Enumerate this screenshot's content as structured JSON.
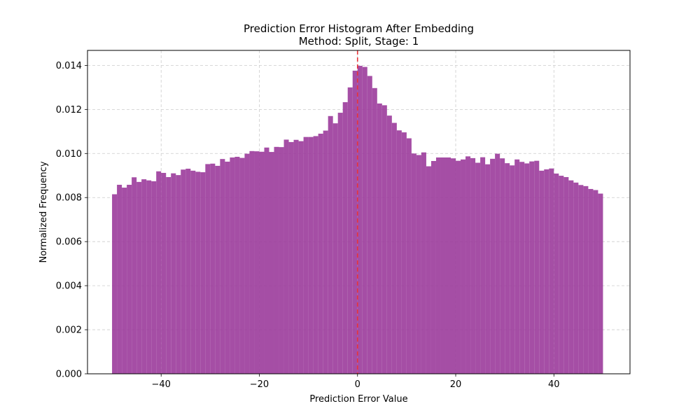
{
  "chart_data": {
    "type": "bar",
    "title": "Prediction Error Histogram After Embedding",
    "subtitle": "Method: Split, Stage: 1",
    "xlabel": "Prediction Error Value",
    "ylabel": "Normalized Frequency",
    "xlim": [
      -55,
      55.5
    ],
    "ylim": [
      0,
      0.01468
    ],
    "xticks": [
      -40,
      -20,
      0,
      20,
      40
    ],
    "xtick_labels": [
      "−40",
      "−20",
      "0",
      "20",
      "40"
    ],
    "yticks": [
      0,
      0.002,
      0.004,
      0.006,
      0.008,
      0.01,
      0.012,
      0.014
    ],
    "ytick_labels": [
      "0.000",
      "0.002",
      "0.004",
      "0.006",
      "0.008",
      "0.010",
      "0.012",
      "0.014"
    ],
    "grid": true,
    "bin_range": [
      -50,
      50
    ],
    "bin_width": 1,
    "values": [
      0.00815,
      0.00858,
      0.00845,
      0.00858,
      0.00892,
      0.00871,
      0.00883,
      0.00878,
      0.00874,
      0.00919,
      0.00912,
      0.00893,
      0.0091,
      0.00902,
      0.00927,
      0.00931,
      0.00922,
      0.00917,
      0.00915,
      0.00952,
      0.00954,
      0.00944,
      0.00975,
      0.00963,
      0.00982,
      0.00985,
      0.0098,
      0.00999,
      0.01011,
      0.0101,
      0.01008,
      0.01027,
      0.01007,
      0.0103,
      0.01029,
      0.01063,
      0.01052,
      0.01062,
      0.01056,
      0.01075,
      0.01075,
      0.01079,
      0.0109,
      0.01104,
      0.0117,
      0.01137,
      0.01185,
      0.01233,
      0.013,
      0.01376,
      0.01398,
      0.01393,
      0.01352,
      0.01297,
      0.01227,
      0.01219,
      0.01172,
      0.01139,
      0.01105,
      0.01096,
      0.01069,
      0.01,
      0.00993,
      0.01005,
      0.00942,
      0.00966,
      0.00982,
      0.00982,
      0.00982,
      0.00978,
      0.00967,
      0.00973,
      0.00987,
      0.00979,
      0.00958,
      0.00983,
      0.00951,
      0.00976,
      0.00999,
      0.00978,
      0.00956,
      0.00946,
      0.00973,
      0.00962,
      0.00955,
      0.00964,
      0.00967,
      0.00922,
      0.00928,
      0.00932,
      0.00909,
      0.00899,
      0.00893,
      0.00878,
      0.00868,
      0.00857,
      0.00852,
      0.00839,
      0.00834,
      0.00818
    ],
    "bar_color": "#9b3b9b",
    "bar_opacity": 0.9,
    "reference_line": {
      "x": 0,
      "color": "#e8343a",
      "style": "dashed"
    }
  }
}
